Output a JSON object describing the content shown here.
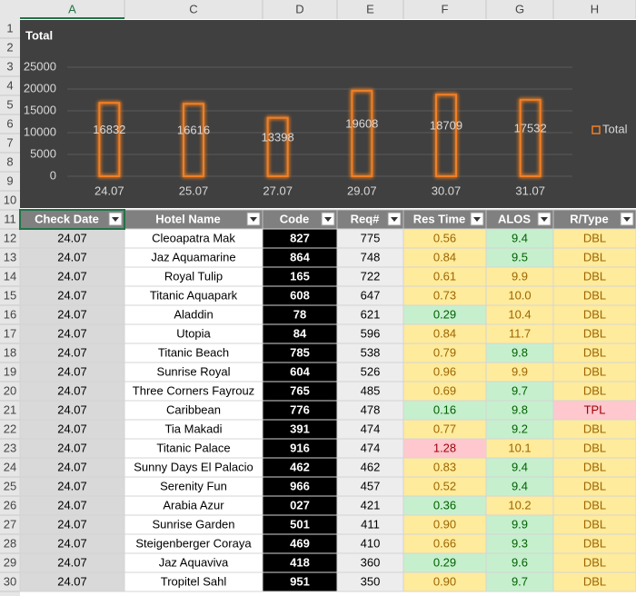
{
  "chart_data": {
    "type": "bar",
    "title": "Total",
    "categories": [
      "24.07",
      "25.07",
      "27.07",
      "29.07",
      "30.07",
      "31.07"
    ],
    "series": [
      {
        "name": "Total",
        "color": "#f07f25",
        "values": [
          16832,
          16616,
          13398,
          19608,
          18709,
          17532
        ]
      }
    ],
    "ylim": [
      0,
      25000
    ],
    "yticks": [
      0,
      5000,
      10000,
      15000,
      20000,
      25000
    ],
    "grid": true,
    "legend": "right"
  },
  "sheet": {
    "column_letters": [
      "A",
      "C",
      "D",
      "E",
      "F",
      "G",
      "H"
    ],
    "row_numbers": [
      "1",
      "2",
      "3",
      "4",
      "5",
      "6",
      "7",
      "8",
      "9",
      "10",
      "11",
      "12",
      "13",
      "14",
      "15",
      "16",
      "17",
      "18",
      "19",
      "20",
      "21",
      "22",
      "23",
      "24",
      "25",
      "26",
      "27",
      "28",
      "29",
      "30"
    ],
    "table": {
      "header": [
        "Check Date",
        "Hotel Name",
        "Code",
        "Req#",
        "Res Time",
        "ALOS",
        "R/Type"
      ],
      "rows": [
        [
          "24.07",
          "Cleoapatra Mak",
          "827",
          "775",
          "0.56",
          "9.4",
          "DBL"
        ],
        [
          "24.07",
          "Jaz Aquamarine",
          "864",
          "748",
          "0.84",
          "9.5",
          "DBL"
        ],
        [
          "24.07",
          "Royal Tulip",
          "165",
          "722",
          "0.61",
          "9.9",
          "DBL"
        ],
        [
          "24.07",
          "Titanic Aquapark",
          "608",
          "647",
          "0.73",
          "10.0",
          "DBL"
        ],
        [
          "24.07",
          "Aladdin",
          "78",
          "621",
          "0.29",
          "10.4",
          "DBL"
        ],
        [
          "24.07",
          "Utopia",
          "84",
          "596",
          "0.84",
          "11.7",
          "DBL"
        ],
        [
          "24.07",
          "Titanic Beach",
          "785",
          "538",
          "0.79",
          "9.8",
          "DBL"
        ],
        [
          "24.07",
          "Sunrise Royal",
          "604",
          "526",
          "0.96",
          "9.9",
          "DBL"
        ],
        [
          "24.07",
          "Three Corners Fayrouz",
          "765",
          "485",
          "0.69",
          "9.7",
          "DBL"
        ],
        [
          "24.07",
          "Caribbean",
          "776",
          "478",
          "0.16",
          "9.8",
          "TPL"
        ],
        [
          "24.07",
          "Tia Makadi",
          "391",
          "474",
          "0.77",
          "9.2",
          "DBL"
        ],
        [
          "24.07",
          "Titanic Palace",
          "916",
          "474",
          "1.28",
          "10.1",
          "DBL"
        ],
        [
          "24.07",
          "Sunny Days El Palacio",
          "462",
          "462",
          "0.83",
          "9.4",
          "DBL"
        ],
        [
          "24.07",
          "Serenity Fun",
          "966",
          "457",
          "0.52",
          "9.4",
          "DBL"
        ],
        [
          "24.07",
          "Arabia Azur",
          "027",
          "421",
          "0.36",
          "10.2",
          "DBL"
        ],
        [
          "24.07",
          "Sunrise Garden",
          "501",
          "411",
          "0.90",
          "9.9",
          "DBL"
        ],
        [
          "24.07",
          "Steigenberger Coraya",
          "469",
          "410",
          "0.66",
          "9.3",
          "DBL"
        ],
        [
          "24.07",
          "Jaz Aquaviva",
          "418",
          "360",
          "0.29",
          "9.6",
          "DBL"
        ],
        [
          "24.07",
          "Tropitel Sahl",
          "951",
          "350",
          "0.90",
          "9.7",
          "DBL"
        ]
      ],
      "res_time_colors": [
        "#ffeb9c",
        "#ffeb9c",
        "#ffeb9c",
        "#ffeb9c",
        "#c6efce",
        "#ffeb9c",
        "#ffeb9c",
        "#ffeb9c",
        "#ffeb9c",
        "#c6efce",
        "#ffeb9c",
        "#ffc7ce",
        "#ffeb9c",
        "#ffeb9c",
        "#c6efce",
        "#ffeb9c",
        "#ffeb9c",
        "#c6efce",
        "#ffeb9c"
      ],
      "alos_colors": [
        "#c6efce",
        "#c6efce",
        "#ffeb9c",
        "#ffeb9c",
        "#ffeb9c",
        "#ffeb9c",
        "#c6efce",
        "#ffeb9c",
        "#c6efce",
        "#c6efce",
        "#c6efce",
        "#ffeb9c",
        "#c6efce",
        "#c6efce",
        "#ffeb9c",
        "#c6efce",
        "#c6efce",
        "#c6efce",
        "#c6efce"
      ],
      "rtype_colors": [
        "#ffeb9c",
        "#ffeb9c",
        "#ffeb9c",
        "#ffeb9c",
        "#ffeb9c",
        "#ffeb9c",
        "#ffeb9c",
        "#ffeb9c",
        "#ffeb9c",
        "#ffc7ce",
        "#ffeb9c",
        "#ffeb9c",
        "#ffeb9c",
        "#ffeb9c",
        "#ffeb9c",
        "#ffeb9c",
        "#ffeb9c",
        "#ffeb9c",
        "#ffeb9c"
      ]
    }
  }
}
